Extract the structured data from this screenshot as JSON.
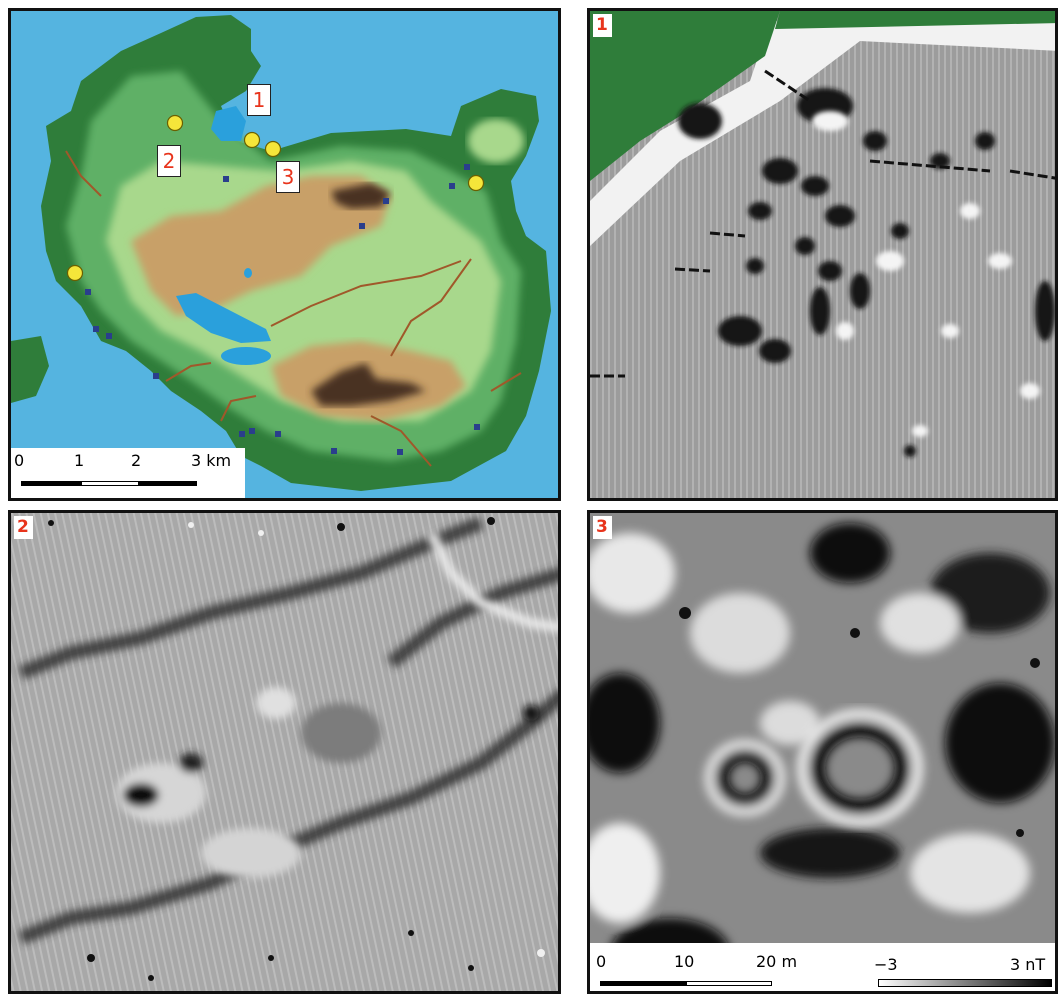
{
  "map_panel": {
    "scale": {
      "t0": "0",
      "t1": "1",
      "t2": "2",
      "t3": "3 km"
    },
    "site_labels": {
      "s1": "1",
      "s2": "2",
      "s3": "3"
    },
    "colors": {
      "sea": "#55b4e0",
      "lowland": "#2f7d3a",
      "mid": "#78c47a",
      "highland": "#c8a068",
      "summit": "#4a3324",
      "lake": "#2aa0dc",
      "site_marker": "#f5e63a",
      "find_marker": "#2a3e8c"
    }
  },
  "panel_numbers": {
    "p1": "1",
    "p2": "2",
    "p3": "3"
  },
  "magnetometry_scale": {
    "m0": "0",
    "m10": "10",
    "m20": "20 m",
    "nt_min": "−3",
    "nt_max": "3 nT"
  }
}
